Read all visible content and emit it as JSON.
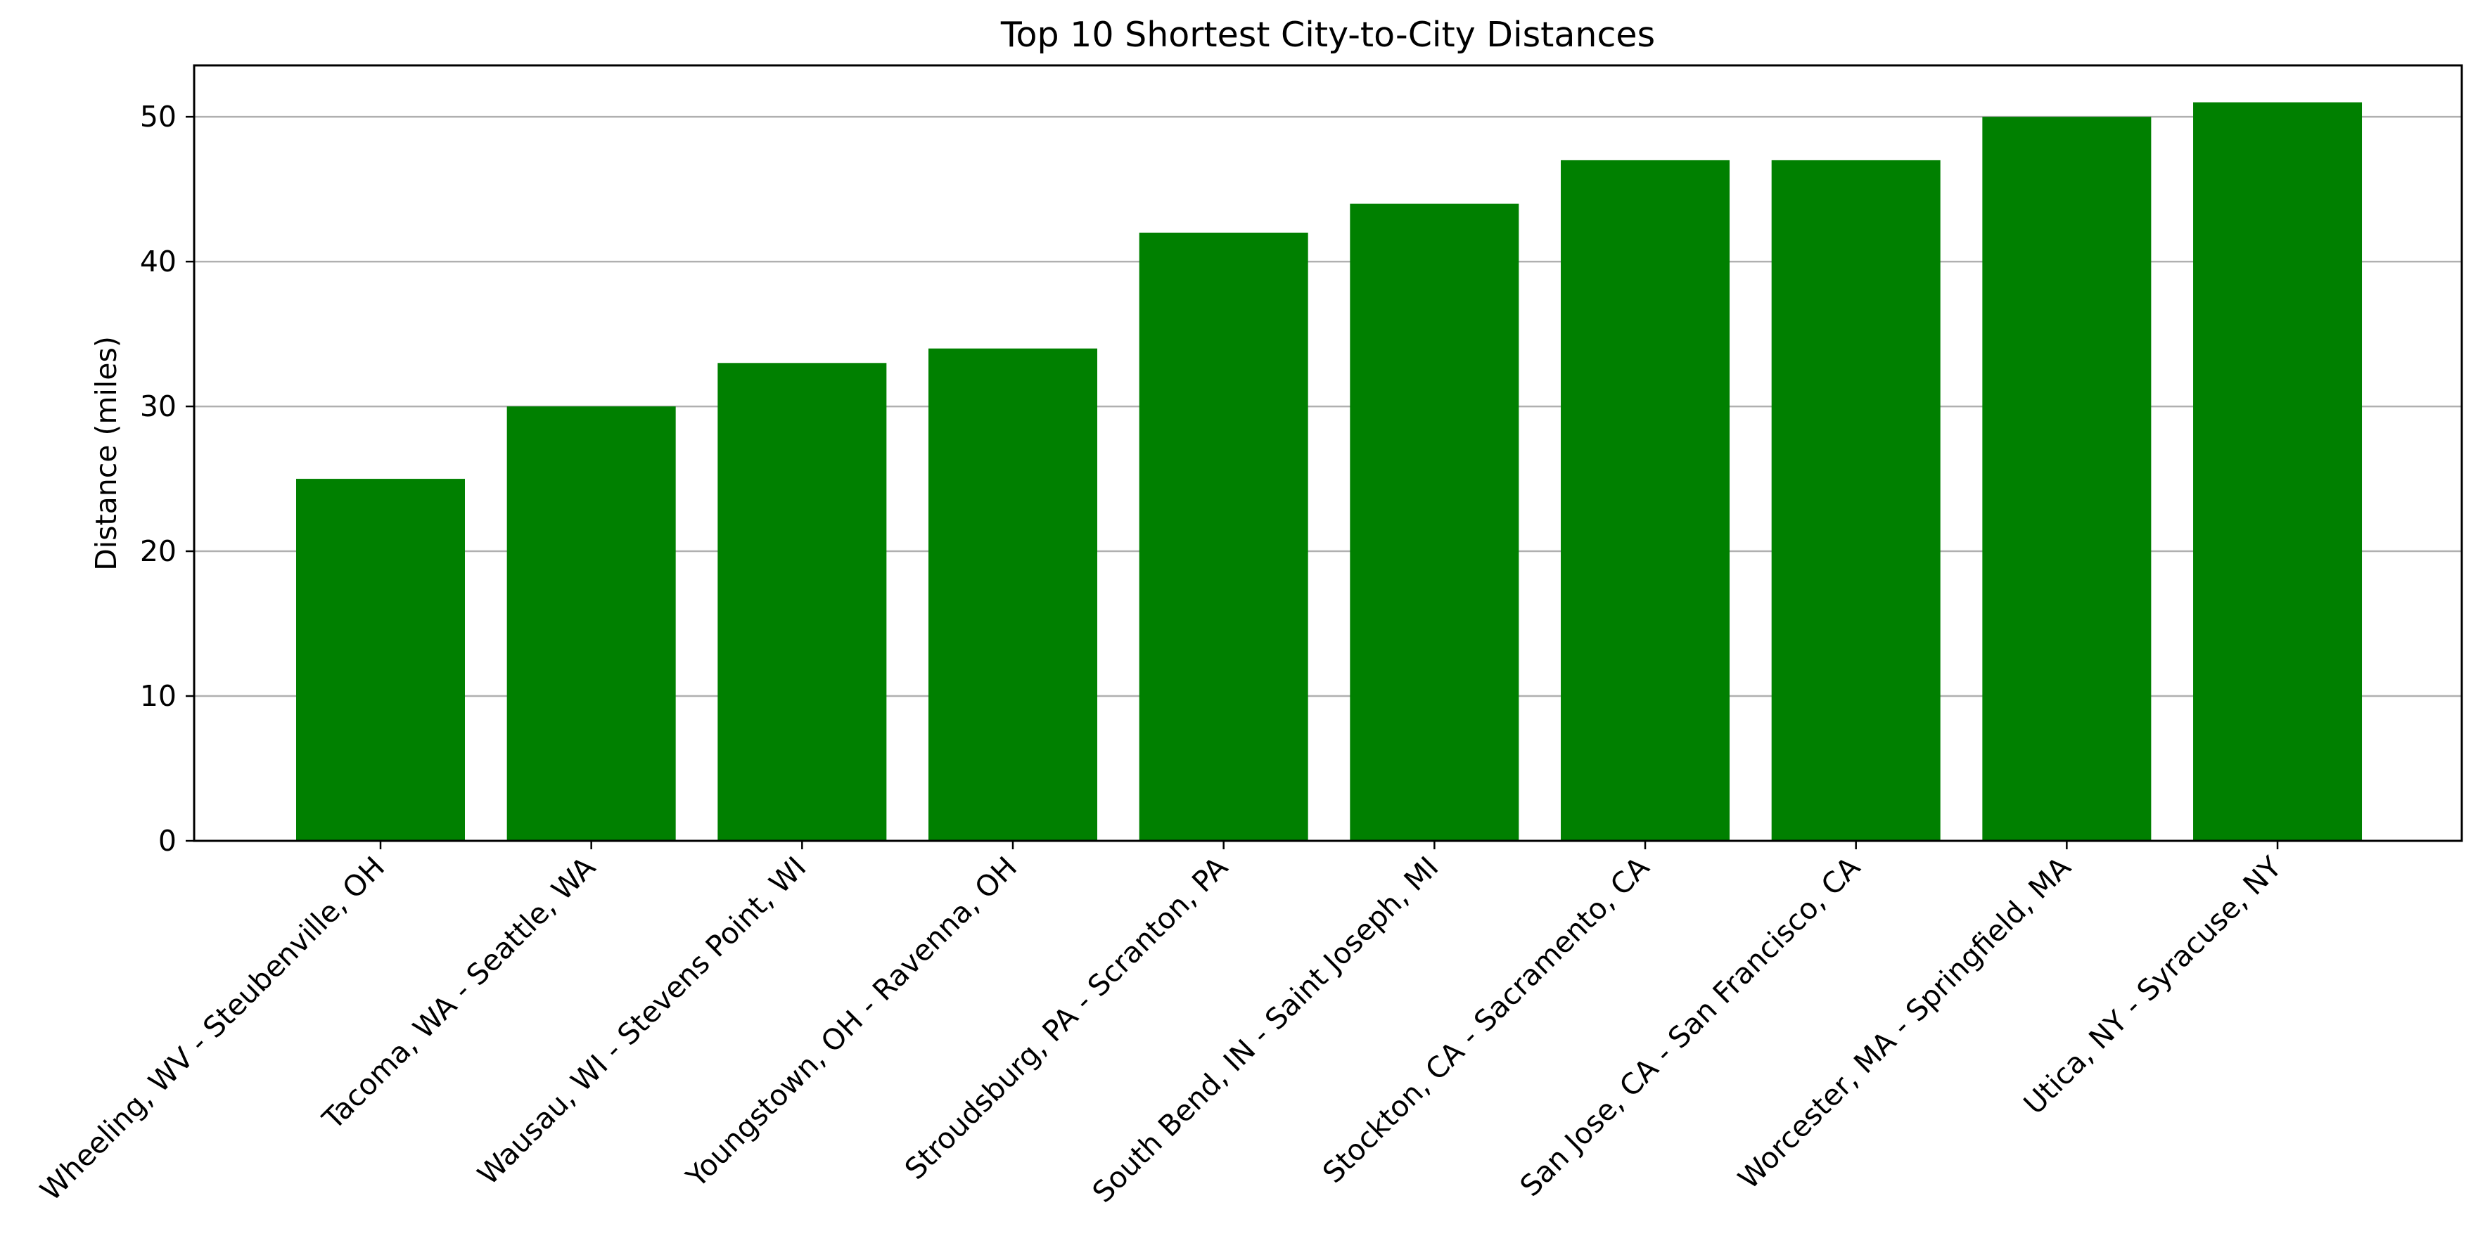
{
  "chart_data": {
    "type": "bar",
    "title": "Top 10 Shortest City-to-City Distances",
    "xlabel": "",
    "ylabel": "Distance (miles)",
    "categories": [
      "Wheeling, WV - Steubenville, OH",
      "Tacoma, WA - Seattle, WA",
      "Wausau, WI - Stevens Point, WI",
      "Youngstown, OH - Ravenna, OH",
      "Stroudsburg, PA - Scranton, PA",
      "South Bend, IN - Saint Joseph, MI",
      "Stockton, CA - Sacramento, CA",
      "San Jose, CA - San Francisco, CA",
      "Worcester, MA - Springfield, MA",
      "Utica, NY - Syracuse, NY"
    ],
    "values": [
      25,
      30,
      33,
      34,
      42,
      44,
      47,
      47,
      50,
      51
    ],
    "ylim": [
      0,
      53.55
    ],
    "yticks": [
      0,
      10,
      20,
      30,
      40,
      50
    ],
    "grid": "y",
    "bar_color": "#008000",
    "grid_color": "#b0b0b0"
  }
}
